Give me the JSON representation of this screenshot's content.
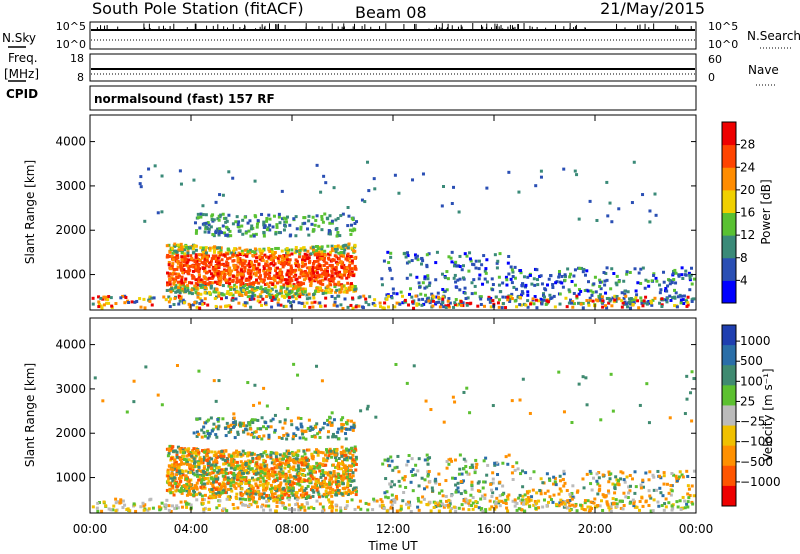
{
  "header": {
    "station": "South Pole Station (fitACF)",
    "beam": "Beam 08",
    "date": "21/May/2015"
  },
  "nsky_panel": {
    "left_label": "N.Sky",
    "left_ticks": [
      "10^5",
      "10^0"
    ],
    "right_ticks": [
      "10^5",
      "10^0"
    ],
    "right_label": "N.Search"
  },
  "freq_panel": {
    "left_label_1": "Freq.",
    "left_label_2": "[MHz]",
    "left_ticks": [
      "18",
      "8"
    ],
    "right_ticks": [
      "60",
      "0"
    ],
    "right_label": "Nave",
    "cpid_label": "CPID"
  },
  "cpid_text": "normalsound (fast) 157 RF",
  "chart_data": [
    {
      "type": "heatmap",
      "name": "power",
      "ylabel": "Slant Range [km]",
      "yticks": [
        1000,
        2000,
        3000,
        4000
      ],
      "ylim": [
        200,
        4600
      ],
      "xlim": [
        0,
        24
      ],
      "xtick_labels": [
        "00:00",
        "04:00",
        "08:00",
        "12:00",
        "16:00",
        "20:00",
        "00:00"
      ],
      "colorbar": {
        "label": "Power [dB]",
        "ticks": [
          "4",
          "8",
          "12",
          "16",
          "20",
          "24",
          "28"
        ],
        "colors": [
          "#0000ff",
          "#2a4fb4",
          "#3a8a78",
          "#59c132",
          "#f0d000",
          "#ff8c00",
          "#ff4400",
          "#ee0000"
        ]
      }
    },
    {
      "type": "heatmap",
      "name": "velocity",
      "ylabel": "Slant Range [km]",
      "yticks": [
        1000,
        2000,
        3000,
        4000
      ],
      "ylim": [
        200,
        4600
      ],
      "xlim": [
        0,
        24
      ],
      "xtick_labels": [
        "00:00",
        "04:00",
        "08:00",
        "12:00",
        "16:00",
        "20:00",
        "00:00"
      ],
      "xlabel": "Time UT",
      "colorbar": {
        "label": "Velocity [m s⁻¹]",
        "ticks": [
          "1000",
          "500",
          "100",
          "25",
          "−25",
          "−100",
          "−500",
          "−1000"
        ],
        "colors": [
          "#1f3fb0",
          "#2a6ea8",
          "#3f8a70",
          "#5cc030",
          "#bbbbbb",
          "#f0c000",
          "#ff9000",
          "#ff5500",
          "#ee0000"
        ]
      }
    }
  ]
}
